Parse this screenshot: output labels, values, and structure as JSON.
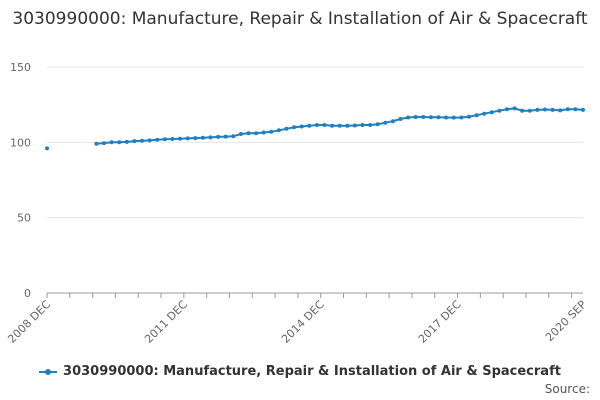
{
  "title": "3030990000: Manufacture, Repair & Installation of Air & Spacecraft",
  "source_label": "Source:",
  "colors": {
    "series": "#1f7fc0",
    "grid": "#e6e6e6",
    "axis": "#333333"
  },
  "chart_data": {
    "type": "line",
    "x_tick_labels": [
      "2008 DEC",
      "2011 DEC",
      "2014 DEC",
      "2017 DEC",
      "2020 SEP"
    ],
    "y_tick_labels": [
      "0",
      "50",
      "100",
      "150"
    ],
    "ylim": [
      0,
      150
    ],
    "xlim": [
      "2008-12",
      "2020-09"
    ],
    "grid": true,
    "legend_position": "bottom",
    "series": [
      {
        "name": "3030990000: Manufacture, Repair & Installation of Air & Spacecraft",
        "points": [
          [
            "2008-12",
            96
          ],
          [
            "2010-01",
            99
          ],
          [
            "2010-03",
            99.5
          ],
          [
            "2010-05",
            100
          ],
          [
            "2010-07",
            100
          ],
          [
            "2010-09",
            100.3
          ],
          [
            "2010-11",
            100.8
          ],
          [
            "2011-01",
            101
          ],
          [
            "2011-03",
            101.3
          ],
          [
            "2011-05",
            101.7
          ],
          [
            "2011-07",
            102
          ],
          [
            "2011-09",
            102.2
          ],
          [
            "2011-11",
            102.4
          ],
          [
            "2012-01",
            102.6
          ],
          [
            "2012-03",
            102.8
          ],
          [
            "2012-05",
            103
          ],
          [
            "2012-07",
            103.3
          ],
          [
            "2012-09",
            103.6
          ],
          [
            "2012-11",
            103.8
          ],
          [
            "2013-01",
            104
          ],
          [
            "2013-03",
            105.5
          ],
          [
            "2013-05",
            106
          ],
          [
            "2013-07",
            106
          ],
          [
            "2013-09",
            106.5
          ],
          [
            "2013-11",
            107
          ],
          [
            "2014-01",
            108
          ],
          [
            "2014-03",
            109
          ],
          [
            "2014-05",
            110
          ],
          [
            "2014-07",
            110.5
          ],
          [
            "2014-09",
            111
          ],
          [
            "2014-11",
            111.5
          ],
          [
            "2015-01",
            111.5
          ],
          [
            "2015-03",
            111
          ],
          [
            "2015-05",
            111
          ],
          [
            "2015-07",
            111
          ],
          [
            "2015-09",
            111.2
          ],
          [
            "2015-11",
            111.5
          ],
          [
            "2016-01",
            111.5
          ],
          [
            "2016-03",
            112
          ],
          [
            "2016-05",
            113
          ],
          [
            "2016-07",
            114
          ],
          [
            "2016-09",
            115.5
          ],
          [
            "2016-11",
            116.5
          ],
          [
            "2017-01",
            116.8
          ],
          [
            "2017-03",
            116.8
          ],
          [
            "2017-05",
            116.7
          ],
          [
            "2017-07",
            116.6
          ],
          [
            "2017-09",
            116.5
          ],
          [
            "2017-11",
            116.4
          ],
          [
            "2018-01",
            116.5
          ],
          [
            "2018-03",
            117
          ],
          [
            "2018-05",
            118
          ],
          [
            "2018-07",
            119
          ],
          [
            "2018-09",
            120
          ],
          [
            "2018-11",
            121
          ],
          [
            "2019-01",
            122
          ],
          [
            "2019-03",
            122.5
          ],
          [
            "2019-05",
            121
          ],
          [
            "2019-07",
            121
          ],
          [
            "2019-09",
            121.5
          ],
          [
            "2019-11",
            121.8
          ],
          [
            "2020-01",
            121.5
          ],
          [
            "2020-03",
            121.2
          ],
          [
            "2020-05",
            122
          ],
          [
            "2020-07",
            122
          ],
          [
            "2020-09",
            121.5
          ]
        ]
      }
    ]
  }
}
